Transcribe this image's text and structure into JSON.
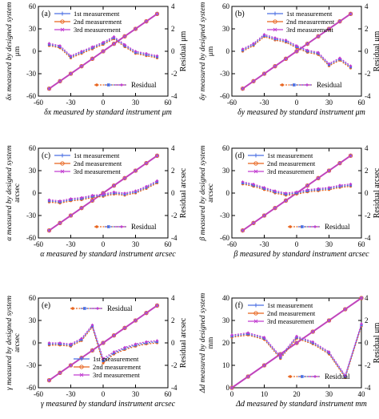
{
  "colors": {
    "series1": "#4a6fe3",
    "series2": "#e8641e",
    "series3": "#c23fd0",
    "fit": "#c23fd0",
    "residual_series": [
      "#e8641e",
      "#4a6fe3",
      "#c23fd0"
    ]
  },
  "chart_data": [
    {
      "type": "line",
      "panel_label": "(a)",
      "xlabel": "δx measured by standard instrument   μm",
      "ylabel": "δx measured by designed system",
      "ylabel_unit": "μm",
      "y2label": "Residual   μm",
      "xlim": [
        -60,
        60
      ],
      "ylim": [
        -60,
        60
      ],
      "y2lim": [
        -4,
        4
      ],
      "xticks": [
        -60,
        -30,
        0,
        30,
        60
      ],
      "yticks": [
        -60,
        -30,
        0,
        30,
        60
      ],
      "y2ticks": [
        -4,
        -2,
        0,
        2,
        4
      ],
      "xtick_labels": [
        "-60",
        "-30",
        "0",
        "30",
        "60"
      ],
      "ytick_labels": [
        "-60",
        "-30",
        "0",
        "30",
        "60"
      ],
      "y2tick_labels": [
        "-4",
        "-2",
        "0",
        "2",
        "4"
      ],
      "legend": [
        "1st measurement",
        "2nd measurement",
        "3rd measurement"
      ],
      "legend_position": "top-left",
      "residual_legend": "Residual",
      "residual_legend_position": "bottom-right",
      "x": [
        -50,
        -40,
        -30,
        -20,
        -10,
        0,
        10,
        20,
        30,
        40,
        50
      ],
      "series": [
        {
          "name": "1st measurement",
          "values": [
            -50,
            -40,
            -30,
            -20,
            -10,
            0,
            10,
            20,
            30,
            40,
            50
          ]
        },
        {
          "name": "2nd measurement",
          "values": [
            -50,
            -40,
            -30,
            -20,
            -10,
            0,
            10,
            20,
            30,
            40,
            50
          ]
        },
        {
          "name": "3rd measurement",
          "values": [
            -50,
            -40,
            -30,
            -20,
            -10,
            0,
            10,
            20,
            30,
            40,
            50
          ]
        }
      ],
      "residuals": [
        [
          0.5,
          0.3,
          -0.6,
          -0.2,
          0.2,
          0.6,
          1.1,
          0.4,
          -0.2,
          -0.4,
          -0.6
        ],
        [
          0.6,
          0.4,
          -0.5,
          -0.1,
          0.3,
          0.7,
          1.2,
          0.5,
          -0.1,
          -0.3,
          -0.5
        ],
        [
          0.7,
          0.5,
          -0.4,
          0.0,
          0.4,
          0.8,
          1.3,
          0.6,
          0.0,
          -0.2,
          -0.4
        ]
      ]
    },
    {
      "type": "line",
      "panel_label": "(b)",
      "xlabel": "δy measured by standard instrument   μm",
      "ylabel": "δy measured by designed system",
      "ylabel_unit": "μm",
      "y2label": "Residual   μm",
      "xlim": [
        -60,
        60
      ],
      "ylim": [
        -60,
        60
      ],
      "y2lim": [
        -4,
        4
      ],
      "xticks": [
        -60,
        -30,
        0,
        30,
        60
      ],
      "yticks": [
        -60,
        -30,
        0,
        30,
        60
      ],
      "y2ticks": [
        -4,
        -2,
        0,
        2,
        4
      ],
      "xtick_labels": [
        "-60",
        "-30",
        "0",
        "30",
        "60"
      ],
      "ytick_labels": [
        "-60",
        "-30",
        "0",
        "30",
        "60"
      ],
      "y2tick_labels": [
        "-4",
        "-2",
        "0",
        "2",
        "4"
      ],
      "legend": [
        "1st measurement",
        "2nd measurement",
        "3rd measurement"
      ],
      "legend_position": "top-center",
      "residual_legend": "Residual",
      "residual_legend_position": "bottom-center",
      "x": [
        -50,
        -40,
        -30,
        -20,
        -10,
        0,
        10,
        20,
        30,
        40,
        50
      ],
      "series": [
        {
          "name": "1st measurement",
          "values": [
            -50,
            -40,
            -30,
            -20,
            -10,
            0,
            10,
            20,
            30,
            40,
            50
          ]
        },
        {
          "name": "2nd measurement",
          "values": [
            -50,
            -40,
            -30,
            -20,
            -10,
            0,
            10,
            20,
            30,
            40,
            50
          ]
        },
        {
          "name": "3rd measurement",
          "values": [
            -50,
            -40,
            -30,
            -20,
            -10,
            0,
            10,
            20,
            30,
            40,
            50
          ]
        }
      ],
      "residuals": [
        [
          0.0,
          0.5,
          1.3,
          1.0,
          0.8,
          0.3,
          -0.1,
          -0.3,
          -1.3,
          -0.8,
          -1.5
        ],
        [
          0.1,
          0.6,
          1.4,
          1.1,
          0.9,
          0.4,
          0.0,
          -0.2,
          -1.2,
          -0.7,
          -1.4
        ],
        [
          0.2,
          0.7,
          1.5,
          1.2,
          1.0,
          0.5,
          0.1,
          -0.1,
          -1.1,
          -0.6,
          -1.3
        ]
      ]
    },
    {
      "type": "line",
      "panel_label": "(c)",
      "xlabel": "α measured by standard instrument   arcsec",
      "ylabel": "α measured by designed system",
      "ylabel_unit": "arcsec",
      "y2label": "Residual   arcsec",
      "xlim": [
        -60,
        60
      ],
      "ylim": [
        -60,
        60
      ],
      "y2lim": [
        -4,
        4
      ],
      "xticks": [
        -60,
        -30,
        0,
        30,
        60
      ],
      "yticks": [
        -60,
        -30,
        0,
        30,
        60
      ],
      "y2ticks": [
        -4,
        -2,
        0,
        2,
        4
      ],
      "xtick_labels": [
        "-60",
        "-30",
        "0",
        "30",
        "60"
      ],
      "ytick_labels": [
        "-60",
        "-30",
        "0",
        "30",
        "60"
      ],
      "y2tick_labels": [
        "-4",
        "-2",
        "0",
        "2",
        "4"
      ],
      "legend": [
        "1st measurement",
        "2nd measurement",
        "3rd measurement"
      ],
      "legend_position": "top-left",
      "residual_legend": "Residual",
      "residual_legend_position": "bottom-right",
      "x": [
        -50,
        -40,
        -30,
        -20,
        -10,
        0,
        10,
        20,
        30,
        40,
        50
      ],
      "series": [
        {
          "name": "1st measurement",
          "values": [
            -50,
            -40,
            -30,
            -20,
            -10,
            0,
            10,
            20,
            30,
            40,
            50
          ]
        },
        {
          "name": "2nd measurement",
          "values": [
            -50,
            -40,
            -30,
            -20,
            -10,
            0,
            10,
            20,
            30,
            40,
            50
          ]
        },
        {
          "name": "3rd measurement",
          "values": [
            -50,
            -40,
            -30,
            -20,
            -10,
            0,
            10,
            20,
            30,
            40,
            50
          ]
        }
      ],
      "residuals": [
        [
          -0.8,
          -0.9,
          -0.7,
          -0.6,
          -0.4,
          -0.3,
          -0.1,
          -0.2,
          0.0,
          0.4,
          0.9
        ],
        [
          -0.7,
          -0.8,
          -0.6,
          -0.5,
          -0.3,
          -0.2,
          0.0,
          -0.1,
          0.1,
          0.5,
          1.0
        ],
        [
          -0.6,
          -0.7,
          -0.5,
          -0.4,
          -0.2,
          -0.1,
          0.1,
          0.0,
          0.2,
          0.6,
          1.1
        ]
      ]
    },
    {
      "type": "line",
      "panel_label": "(d)",
      "xlabel": "β measured by standard instrument   arcsec",
      "ylabel": "β measured by designed system",
      "ylabel_unit": "arcsec",
      "y2label": "Residual   arcsec",
      "xlim": [
        -60,
        60
      ],
      "ylim": [
        -60,
        60
      ],
      "y2lim": [
        -4,
        4
      ],
      "xticks": [
        -60,
        -30,
        0,
        30,
        60
      ],
      "yticks": [
        -60,
        -30,
        0,
        30,
        60
      ],
      "y2ticks": [
        -4,
        -2,
        0,
        2,
        4
      ],
      "xtick_labels": [
        "-60",
        "-30",
        "0",
        "30",
        "60"
      ],
      "ytick_labels": [
        "-60",
        "-30",
        "0",
        "30",
        "60"
      ],
      "y2tick_labels": [
        "-4",
        "-2",
        "0",
        "2",
        "4"
      ],
      "legend": [
        "1st measurement",
        "2nd measurement",
        "3rd measurement"
      ],
      "legend_position": "top-left",
      "residual_legend": "Residual",
      "residual_legend_position": "bottom-right",
      "x": [
        -50,
        -40,
        -30,
        -20,
        -10,
        0,
        10,
        20,
        30,
        40,
        50
      ],
      "series": [
        {
          "name": "1st measurement",
          "values": [
            -50,
            -40,
            -30,
            -20,
            -10,
            0,
            10,
            20,
            30,
            40,
            50
          ]
        },
        {
          "name": "2nd measurement",
          "values": [
            -50,
            -40,
            -30,
            -20,
            -10,
            0,
            10,
            20,
            30,
            40,
            50
          ]
        },
        {
          "name": "3rd measurement",
          "values": [
            -50,
            -40,
            -30,
            -20,
            -10,
            0,
            10,
            20,
            30,
            40,
            50
          ]
        }
      ],
      "residuals": [
        [
          0.8,
          0.6,
          0.3,
          0.0,
          -0.2,
          -0.1,
          0.1,
          0.2,
          0.3,
          0.5,
          0.6
        ],
        [
          0.9,
          0.7,
          0.4,
          0.1,
          -0.1,
          0.0,
          0.2,
          0.3,
          0.4,
          0.6,
          0.7
        ],
        [
          1.0,
          0.8,
          0.5,
          0.2,
          0.0,
          0.1,
          0.3,
          0.4,
          0.5,
          0.7,
          0.8
        ]
      ]
    },
    {
      "type": "line",
      "panel_label": "(e)",
      "xlabel": "γ measured by standard instrument   arcsec",
      "ylabel": "γ measured by designed system",
      "ylabel_unit": "arcsec",
      "y2label": "Residual   arcsec",
      "xlim": [
        -60,
        60
      ],
      "ylim": [
        -60,
        60
      ],
      "y2lim": [
        -4,
        4
      ],
      "xticks": [
        -60,
        -30,
        0,
        30,
        60
      ],
      "yticks": [
        -60,
        -30,
        0,
        30,
        60
      ],
      "y2ticks": [
        -4,
        -2,
        0,
        2,
        4
      ],
      "xtick_labels": [
        "-60",
        "-30",
        "0",
        "30",
        "60"
      ],
      "ytick_labels": [
        "-60",
        "-30",
        "0",
        "30",
        "60"
      ],
      "y2tick_labels": [
        "-4",
        "-2",
        "0",
        "2",
        "4"
      ],
      "legend": [
        "1st measurement",
        "2nd measurement",
        "3rd measurement"
      ],
      "legend_position": "bottom-center",
      "residual_legend": "Residual",
      "residual_legend_position": "top-left",
      "x": [
        -50,
        -40,
        -30,
        -20,
        -10,
        0,
        10,
        20,
        30,
        40,
        50
      ],
      "series": [
        {
          "name": "1st measurement",
          "values": [
            -50,
            -40,
            -30,
            -20,
            -10,
            0,
            10,
            20,
            30,
            40,
            50
          ]
        },
        {
          "name": "2nd measurement",
          "values": [
            -50,
            -40,
            -30,
            -20,
            -10,
            0,
            10,
            20,
            30,
            40,
            50
          ]
        },
        {
          "name": "3rd measurement",
          "values": [
            -50,
            -40,
            -30,
            -20,
            -10,
            0,
            10,
            20,
            30,
            40,
            50
          ]
        }
      ],
      "residuals": [
        [
          -0.2,
          -0.2,
          -0.3,
          0.2,
          1.4,
          -1.8,
          -1.0,
          -0.6,
          -0.3,
          -0.1,
          0.0
        ],
        [
          -0.1,
          -0.1,
          -0.2,
          0.3,
          1.5,
          -1.6,
          -0.9,
          -0.5,
          -0.2,
          0.0,
          0.1
        ],
        [
          0.0,
          0.0,
          -0.1,
          0.4,
          1.6,
          -1.4,
          -0.8,
          -0.4,
          -0.1,
          0.1,
          0.2
        ]
      ]
    },
    {
      "type": "line",
      "panel_label": "(f)",
      "xlabel": "Δd  measured by standard instrument   mm",
      "ylabel": "Δd  measured by designed system",
      "ylabel_unit": "mm",
      "y2label": "Residual   μm",
      "xlim": [
        0,
        40
      ],
      "ylim": [
        0,
        40
      ],
      "y2lim": [
        -4,
        4
      ],
      "xticks": [
        0,
        10,
        20,
        30,
        40
      ],
      "yticks": [
        0,
        10,
        20,
        30,
        40
      ],
      "y2ticks": [
        -4,
        -2,
        0,
        2,
        4
      ],
      "xtick_labels": [
        "0",
        "10",
        "20",
        "30",
        "40"
      ],
      "ytick_labels": [
        "0",
        "10",
        "20",
        "30",
        "40"
      ],
      "y2tick_labels": [
        "-4",
        "-2",
        "0",
        "2",
        "4"
      ],
      "legend": [
        "1st measurement",
        "2nd measurement",
        "3rd measurement"
      ],
      "legend_position": "top-left",
      "residual_legend": "Residual",
      "residual_legend_position": "bottom-right",
      "x": [
        0,
        5,
        10,
        15,
        20,
        25,
        30,
        35,
        40
      ],
      "series": [
        {
          "name": "1st measurement",
          "values": [
            0,
            5,
            10,
            15,
            20,
            25,
            30,
            35,
            40
          ]
        },
        {
          "name": "2nd measurement",
          "values": [
            0,
            5,
            10,
            15,
            20,
            25,
            30,
            35,
            40
          ]
        },
        {
          "name": "3rd measurement",
          "values": [
            0,
            5,
            10,
            15,
            20,
            25,
            30,
            35,
            40
          ]
        }
      ],
      "residuals": [
        [
          0.5,
          0.7,
          0.3,
          -1.4,
          0.4,
          -0.1,
          -1.0,
          -3.1,
          1.5
        ],
        [
          0.6,
          0.8,
          0.4,
          -1.3,
          0.5,
          0.0,
          -0.9,
          -3.0,
          1.6
        ],
        [
          0.7,
          0.9,
          0.5,
          -1.2,
          0.6,
          0.1,
          -0.8,
          -2.9,
          1.7
        ]
      ]
    }
  ]
}
